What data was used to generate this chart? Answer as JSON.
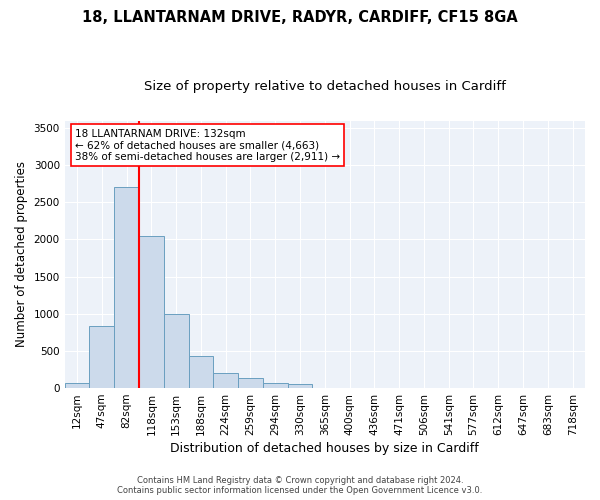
{
  "title_line1": "18, LLANTARNAM DRIVE, RADYR, CARDIFF, CF15 8GA",
  "title_line2": "Size of property relative to detached houses in Cardiff",
  "xlabel": "Distribution of detached houses by size in Cardiff",
  "ylabel": "Number of detached properties",
  "categories": [
    "12sqm",
    "47sqm",
    "82sqm",
    "118sqm",
    "153sqm",
    "188sqm",
    "224sqm",
    "259sqm",
    "294sqm",
    "330sqm",
    "365sqm",
    "400sqm",
    "436sqm",
    "471sqm",
    "506sqm",
    "541sqm",
    "577sqm",
    "612sqm",
    "647sqm",
    "683sqm",
    "718sqm"
  ],
  "values": [
    70,
    830,
    2700,
    2050,
    1000,
    430,
    200,
    130,
    70,
    55,
    0,
    0,
    0,
    0,
    0,
    0,
    0,
    0,
    0,
    0,
    0
  ],
  "bar_color": "#ccdaeb",
  "bar_edge_color": "#6a9fc0",
  "vline_color": "red",
  "vline_position": 2.5,
  "annotation_text": "18 LLANTARNAM DRIVE: 132sqm\n← 62% of detached houses are smaller (4,663)\n38% of semi-detached houses are larger (2,911) →",
  "annotation_box_facecolor": "white",
  "annotation_box_edgecolor": "red",
  "ylim": [
    0,
    3600
  ],
  "yticks": [
    0,
    500,
    1000,
    1500,
    2000,
    2500,
    3000,
    3500
  ],
  "plot_bg_color": "#edf2f9",
  "footer_line1": "Contains HM Land Registry data © Crown copyright and database right 2024.",
  "footer_line2": "Contains public sector information licensed under the Open Government Licence v3.0.",
  "title_fontsize": 10.5,
  "subtitle_fontsize": 9.5,
  "ylabel_fontsize": 8.5,
  "xlabel_fontsize": 9,
  "tick_fontsize": 7.5,
  "annotation_fontsize": 7.5,
  "footer_fontsize": 6
}
